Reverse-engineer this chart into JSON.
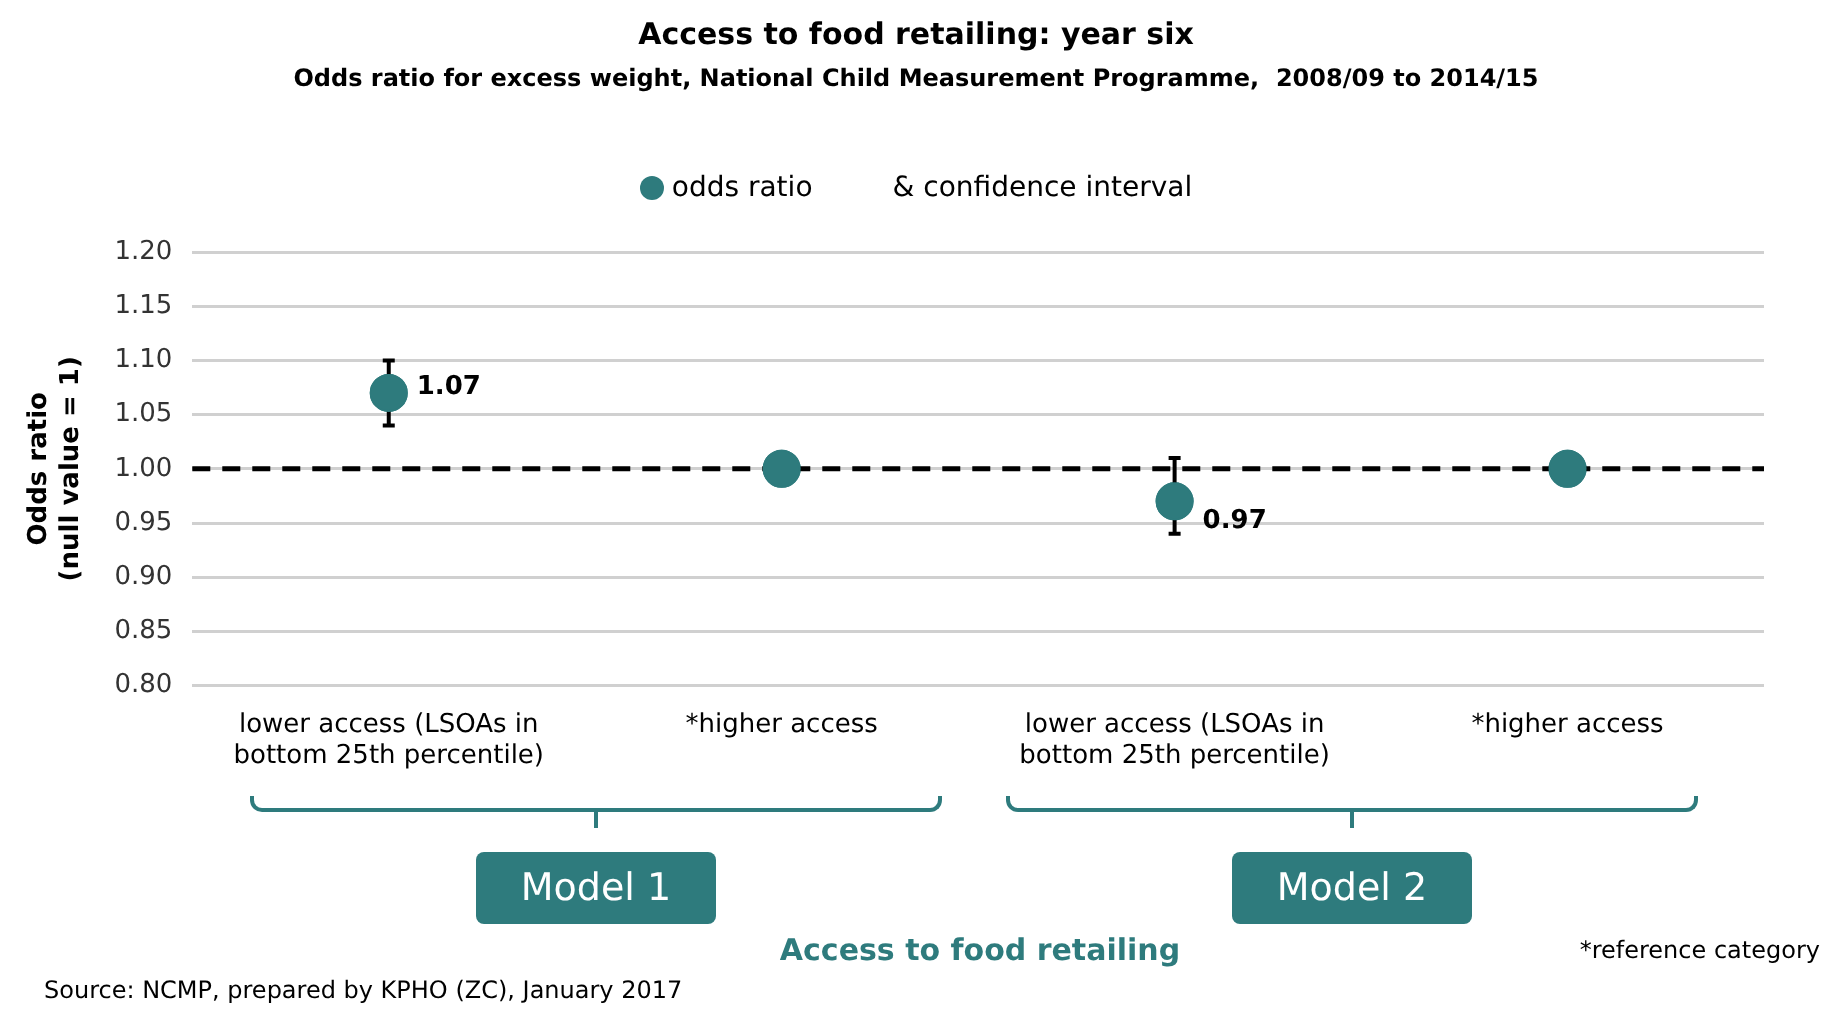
{
  "chart_data": {
    "type": "scatter",
    "title": "Access to food retailing: year six",
    "subtitle": "Odds ratio for excess weight, National Child Measurement Programme,  2008/09 to 2014/15",
    "ylabel": "Odds ratio (null value = 1)",
    "categories": [
      "lower access (LSOAs in bottom 25th percentile)",
      "*higher access",
      "lower access (LSOAs in bottom 25th percentile)",
      "*higher access"
    ],
    "series": [
      {
        "name": "odds ratio",
        "color": "#2e7b7d",
        "values": [
          1.07,
          1.0,
          0.97,
          1.0
        ],
        "errors": [
          [
            1.04,
            1.1
          ],
          null,
          [
            0.94,
            1.01
          ],
          null
        ],
        "value_labels": [
          "1.07",
          null,
          "0.97",
          null
        ]
      }
    ],
    "ylim": [
      0.8,
      1.2
    ],
    "yticks": [
      {
        "value": 0.8,
        "label": "0.80"
      },
      {
        "value": 0.85,
        "label": "0.85"
      },
      {
        "value": 0.9,
        "label": "0.90"
      },
      {
        "value": 0.95,
        "label": "0.95"
      },
      {
        "value": 1.0,
        "label": "1.00"
      },
      {
        "value": 1.05,
        "label": "1.05"
      },
      {
        "value": 1.1,
        "label": "1.10"
      },
      {
        "value": 1.15,
        "label": "1.15"
      },
      {
        "value": 1.2,
        "label": "1.20"
      }
    ],
    "ref_lines": [
      {
        "axis": "y",
        "value": 1.0,
        "color": "#000000",
        "line_style": "dashed"
      }
    ],
    "grid": "y",
    "legend": "top",
    "marker": "circle",
    "annotations": [
      "& confidence interval",
      "Model 1",
      "Model 2",
      "Access to food retailing",
      "*reference category",
      "Source: NCMP, prepared by KPHO (ZC), January 2017"
    ]
  }
}
